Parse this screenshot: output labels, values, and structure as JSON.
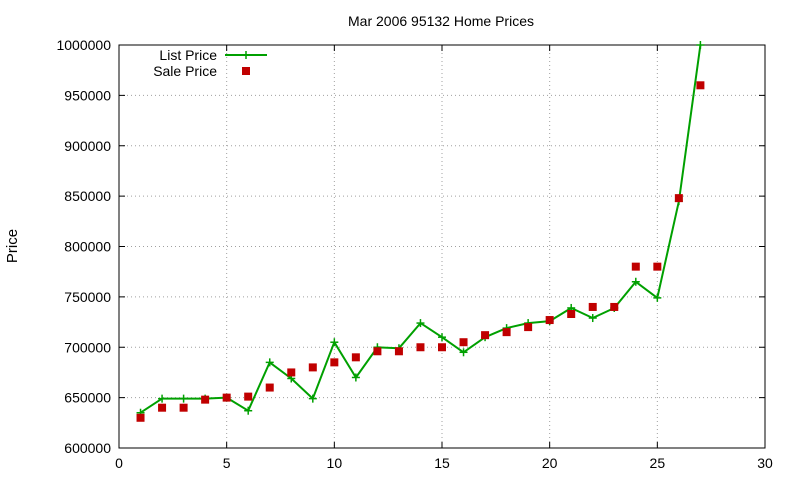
{
  "chart_data": {
    "type": "line",
    "title": "Mar 2006 95132 Home Prices",
    "xlabel": "",
    "ylabel": "Price",
    "xlim": [
      0,
      30
    ],
    "ylim": [
      600000,
      1000000
    ],
    "x_ticks": [
      0,
      5,
      10,
      15,
      20,
      25,
      30
    ],
    "y_ticks": [
      600000,
      650000,
      700000,
      750000,
      800000,
      850000,
      900000,
      950000,
      1000000
    ],
    "grid": true,
    "legend_position": "top-left",
    "series": [
      {
        "name": "List Price",
        "style": "linespoints",
        "color": "#00a000",
        "x": [
          1,
          2,
          3,
          4,
          5,
          6,
          7,
          8,
          9,
          10,
          11,
          12,
          13,
          14,
          15,
          16,
          17,
          18,
          19,
          20,
          21,
          22,
          23,
          24,
          25,
          26,
          27
        ],
        "y": [
          635000,
          649000,
          649000,
          649000,
          650000,
          637000,
          685000,
          669000,
          649000,
          705000,
          670000,
          700000,
          699000,
          724000,
          710000,
          695000,
          710000,
          719000,
          724000,
          726000,
          739000,
          729000,
          739000,
          765000,
          749000,
          845000,
          1000000
        ]
      },
      {
        "name": "Sale Price",
        "style": "points",
        "color": "#c00000",
        "x": [
          1,
          2,
          3,
          4,
          5,
          6,
          7,
          8,
          9,
          10,
          11,
          12,
          13,
          14,
          15,
          16,
          17,
          18,
          19,
          20,
          21,
          22,
          23,
          24,
          25,
          26,
          27
        ],
        "y": [
          630000,
          640000,
          640000,
          648000,
          650000,
          651000,
          660000,
          675000,
          680000,
          685000,
          690000,
          696000,
          696000,
          700000,
          700000,
          705000,
          712000,
          715000,
          720000,
          727000,
          733000,
          740000,
          740000,
          780000,
          780000,
          848000,
          960000
        ]
      }
    ]
  }
}
